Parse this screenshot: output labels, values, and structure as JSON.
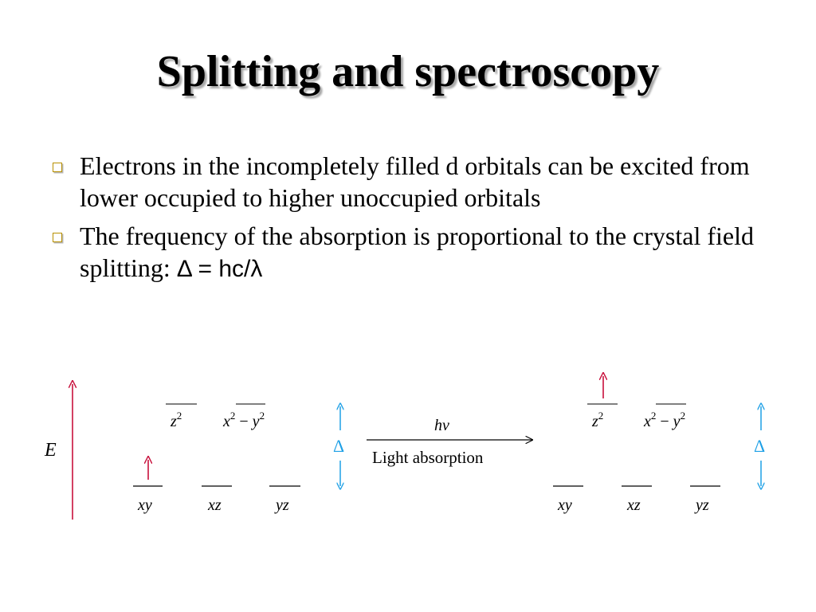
{
  "slide": {
    "title": "Splitting and spectroscopy",
    "bullets": [
      {
        "text": "Electrons in the incompletely filled d orbitals can be excited from lower occupied to higher unoccupied orbitals"
      },
      {
        "text": "The frequency of the absorption is proportional to the crystal field splitting: ",
        "formula": "Δ = hc/λ"
      }
    ]
  },
  "diagram": {
    "energy_label": "E",
    "upper_orbitals": {
      "z2": "z",
      "z2_sup": "2",
      "x2": "x",
      "x2_sup": "2",
      "minus": " − ",
      "y2": "y",
      "y2_sup": "2"
    },
    "lower_orbitals": {
      "xy": "xy",
      "xz": "xz",
      "yz": "yz"
    },
    "delta_label": "Δ",
    "arrow_top_label": "hν",
    "arrow_bottom_label": "Light absorption",
    "colors": {
      "energy_arrow": "#c8103c",
      "electron": "#c8103c",
      "delta": "#1ea0e6",
      "line": "#000000"
    }
  }
}
